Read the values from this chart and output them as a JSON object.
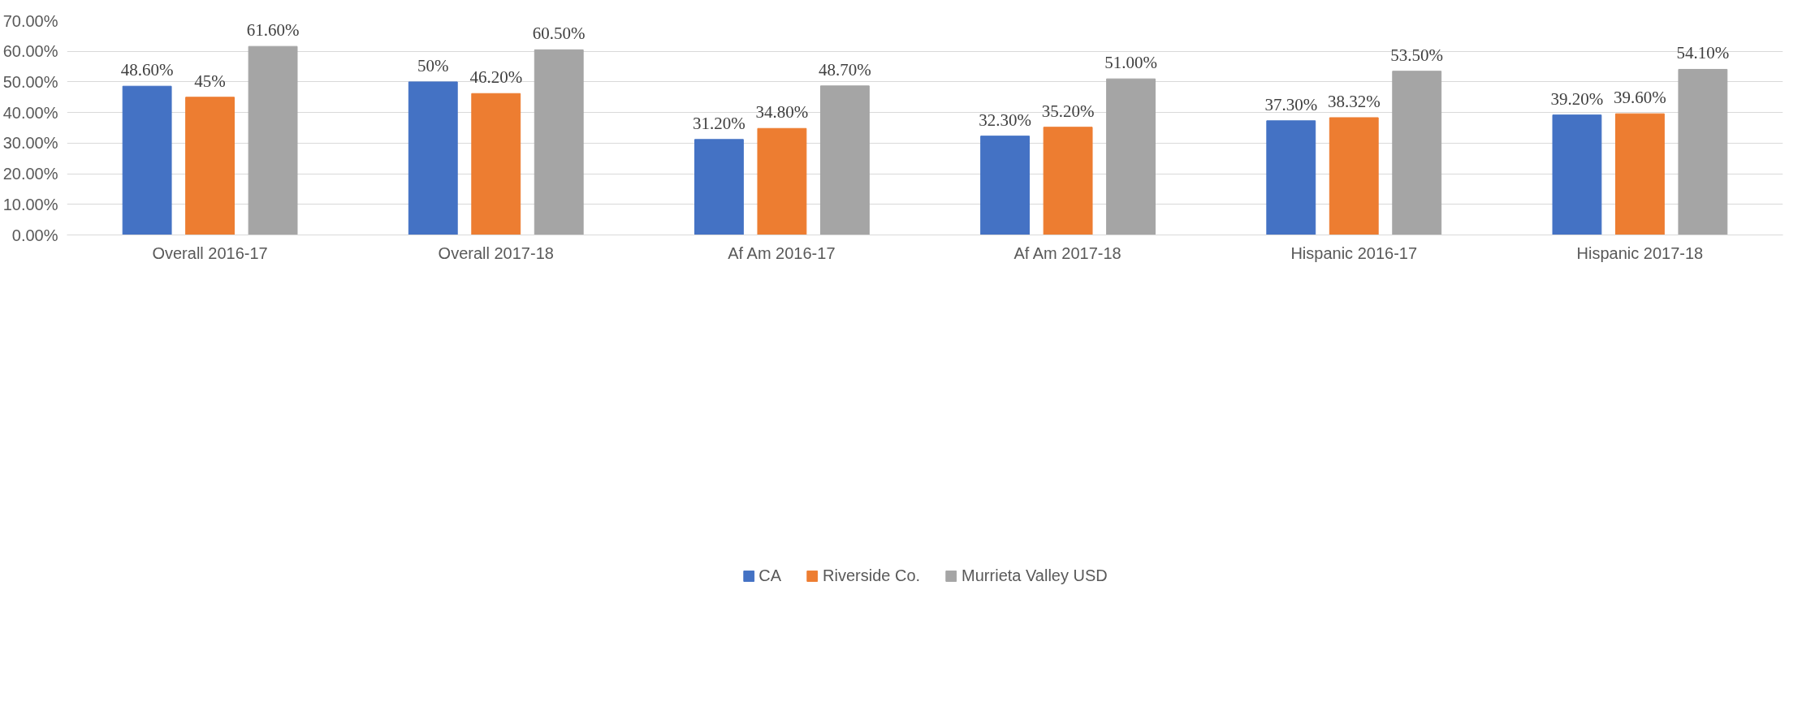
{
  "chart_data": {
    "type": "bar",
    "categories": [
      "Overall 2016-17",
      "Overall 2017-18",
      "Af Am 2016-17",
      "Af Am 2017-18",
      "Hispanic 2016-17",
      "Hispanic 2017-18"
    ],
    "series": [
      {
        "name": "CA",
        "color": "#4472c4",
        "values": [
          48.6,
          50,
          31.2,
          32.3,
          37.3,
          39.2
        ],
        "value_labels": [
          "48.60%",
          "50%",
          "31.20%",
          "32.30%",
          "37.30%",
          "39.20%"
        ]
      },
      {
        "name": "Riverside Co.",
        "color": "#ed7d31",
        "values": [
          45,
          46.2,
          34.8,
          35.2,
          38.32,
          39.6
        ],
        "value_labels": [
          "45%",
          "46.20%",
          "34.80%",
          "35.20%",
          "38.32%",
          "39.60%"
        ]
      },
      {
        "name": "Murrieta Valley USD",
        "color": "#a5a5a5",
        "values": [
          61.6,
          60.5,
          48.7,
          51.0,
          53.5,
          54.1
        ],
        "value_labels": [
          "61.60%",
          "60.50%",
          "48.70%",
          "51.00%",
          "53.50%",
          "54.10%"
        ]
      }
    ],
    "ylim": [
      0,
      70
    ],
    "yticks": [
      {
        "value": 0,
        "label": "0.00%"
      },
      {
        "value": 10,
        "label": "10.00%"
      },
      {
        "value": 20,
        "label": "20.00%"
      },
      {
        "value": 30,
        "label": "30.00%"
      },
      {
        "value": 40,
        "label": "40.00%"
      },
      {
        "value": 50,
        "label": "50.00%"
      },
      {
        "value": 60,
        "label": "60.00%"
      },
      {
        "value": 70,
        "label": "70.00%"
      }
    ],
    "grid": "y",
    "legend": "bottom"
  }
}
